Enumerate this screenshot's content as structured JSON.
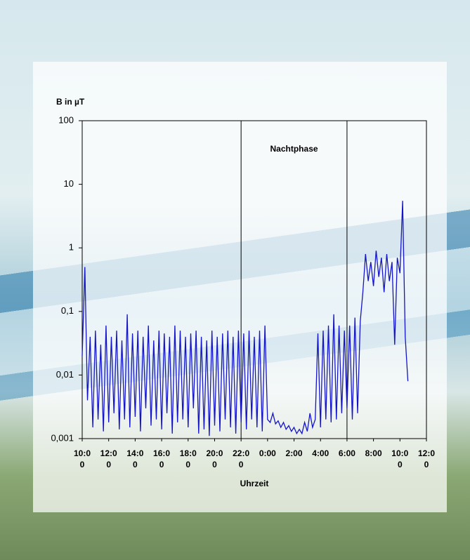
{
  "chart_data": {
    "type": "line",
    "y_label": "B in µT",
    "x_label": "Uhrzeit",
    "annotation": "Nachtphase",
    "annotation_span": [
      22,
      30
    ],
    "log_y": true,
    "ylim": [
      0.001,
      100
    ],
    "yticks": [
      100,
      10,
      1,
      {
        "value": 0.1,
        "label": "0,1"
      },
      {
        "value": 0.01,
        "label": "0,01"
      },
      {
        "value": 0.001,
        "label": "0,001"
      }
    ],
    "xlim": [
      10,
      36
    ],
    "xticks": [
      {
        "value": 10,
        "label": "10:00"
      },
      {
        "value": 12,
        "label": "12:00"
      },
      {
        "value": 14,
        "label": "14:00"
      },
      {
        "value": 16,
        "label": "16:00"
      },
      {
        "value": 18,
        "label": "18:00"
      },
      {
        "value": 20,
        "label": "20:00"
      },
      {
        "value": 22,
        "label": "22:00"
      },
      {
        "value": 24,
        "label": "0:00"
      },
      {
        "value": 26,
        "label": "2:00"
      },
      {
        "value": 28,
        "label": "4:00"
      },
      {
        "value": 30,
        "label": "6:00"
      },
      {
        "value": 32,
        "label": "8:00"
      },
      {
        "value": 34,
        "label": "10:00"
      },
      {
        "value": 36,
        "label": "12:00"
      }
    ],
    "x": [
      10.0,
      10.2,
      10.4,
      10.6,
      10.8,
      11.0,
      11.2,
      11.4,
      11.6,
      11.8,
      12.0,
      12.2,
      12.4,
      12.6,
      12.8,
      13.0,
      13.2,
      13.4,
      13.6,
      13.8,
      14.0,
      14.2,
      14.4,
      14.6,
      14.8,
      15.0,
      15.2,
      15.4,
      15.6,
      15.8,
      16.0,
      16.2,
      16.4,
      16.6,
      16.8,
      17.0,
      17.2,
      17.4,
      17.6,
      17.8,
      18.0,
      18.2,
      18.4,
      18.6,
      18.8,
      19.0,
      19.2,
      19.4,
      19.6,
      19.8,
      20.0,
      20.2,
      20.4,
      20.6,
      20.8,
      21.0,
      21.2,
      21.4,
      21.6,
      21.8,
      22.0,
      22.2,
      22.4,
      22.6,
      22.8,
      23.0,
      23.2,
      23.4,
      23.6,
      23.8,
      24.0,
      24.2,
      24.4,
      24.6,
      24.8,
      25.0,
      25.2,
      25.4,
      25.6,
      25.8,
      26.0,
      26.2,
      26.4,
      26.6,
      26.8,
      27.0,
      27.2,
      27.4,
      27.6,
      27.8,
      28.0,
      28.2,
      28.4,
      28.6,
      28.8,
      29.0,
      29.2,
      29.4,
      29.6,
      29.8,
      30.0,
      30.2,
      30.4,
      30.6,
      30.8,
      31.0,
      31.2,
      31.4,
      31.6,
      31.8,
      32.0,
      32.2,
      32.4,
      32.6,
      32.8,
      33.0,
      33.2,
      33.4,
      33.6,
      33.8,
      34.0,
      34.2,
      34.4,
      34.6
    ],
    "series": [
      {
        "color": "#1414c8",
        "values": [
          0.02,
          0.5,
          0.004,
          0.04,
          0.0015,
          0.05,
          0.002,
          0.03,
          0.0013,
          0.06,
          0.0018,
          0.04,
          0.0025,
          0.05,
          0.0014,
          0.035,
          0.002,
          0.09,
          0.0015,
          0.045,
          0.0022,
          0.05,
          0.0013,
          0.04,
          0.003,
          0.06,
          0.0016,
          0.035,
          0.002,
          0.05,
          0.0014,
          0.045,
          0.0025,
          0.04,
          0.0012,
          0.06,
          0.0018,
          0.05,
          0.002,
          0.04,
          0.0015,
          0.045,
          0.003,
          0.05,
          0.0012,
          0.04,
          0.0014,
          0.035,
          0.0011,
          0.05,
          0.0016,
          0.04,
          0.0013,
          0.045,
          0.002,
          0.05,
          0.0015,
          0.04,
          0.0012,
          0.05,
          0.0018,
          0.045,
          0.0014,
          0.05,
          0.002,
          0.04,
          0.0015,
          0.05,
          0.0013,
          0.06,
          0.002,
          0.0018,
          0.0025,
          0.0017,
          0.0019,
          0.0015,
          0.0018,
          0.0014,
          0.0016,
          0.0013,
          0.0015,
          0.0012,
          0.0014,
          0.0012,
          0.0018,
          0.0013,
          0.0025,
          0.0015,
          0.002,
          0.045,
          0.0015,
          0.05,
          0.002,
          0.06,
          0.0018,
          0.09,
          0.002,
          0.06,
          0.0025,
          0.05,
          0.003,
          0.06,
          0.002,
          0.08,
          0.0025,
          0.07,
          0.2,
          0.8,
          0.3,
          0.6,
          0.25,
          0.9,
          0.35,
          0.7,
          0.2,
          0.8,
          0.3,
          0.6,
          0.03,
          0.7,
          0.4,
          5.5,
          0.04,
          0.008
        ]
      }
    ]
  }
}
